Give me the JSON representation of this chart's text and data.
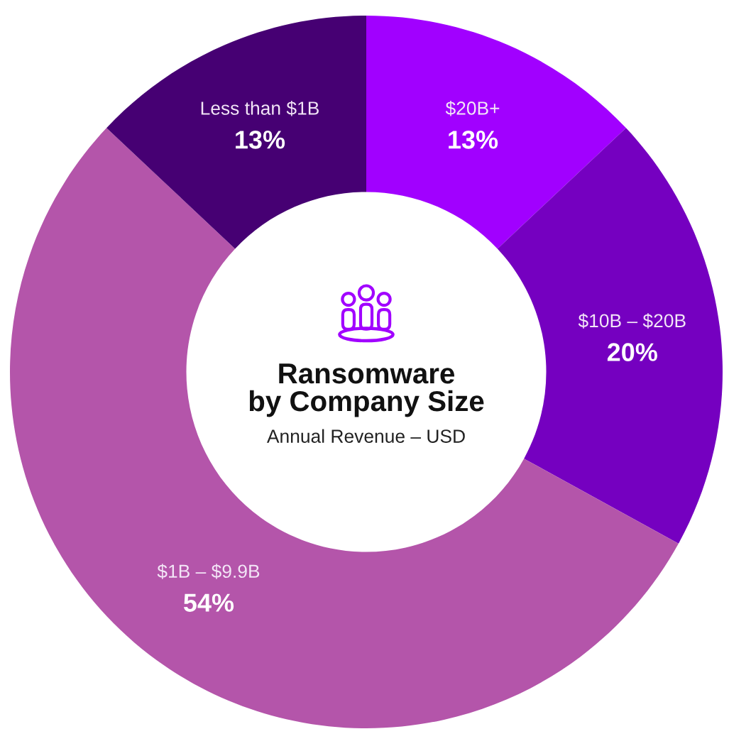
{
  "chart_data": {
    "type": "donut",
    "title": "Ransomware\nby Company Size",
    "subtitle": "Annual Revenue – USD",
    "categories": [
      "$20B+",
      "$10B – $20B",
      "$1B – $9.9B",
      "Less than $1B"
    ],
    "values": [
      13,
      20,
      54,
      13
    ],
    "colors": [
      "#a100ff",
      "#7500c0",
      "#b455aa",
      "#460073"
    ],
    "value_labels": [
      "13%",
      "20%",
      "54%",
      "13%"
    ]
  }
}
